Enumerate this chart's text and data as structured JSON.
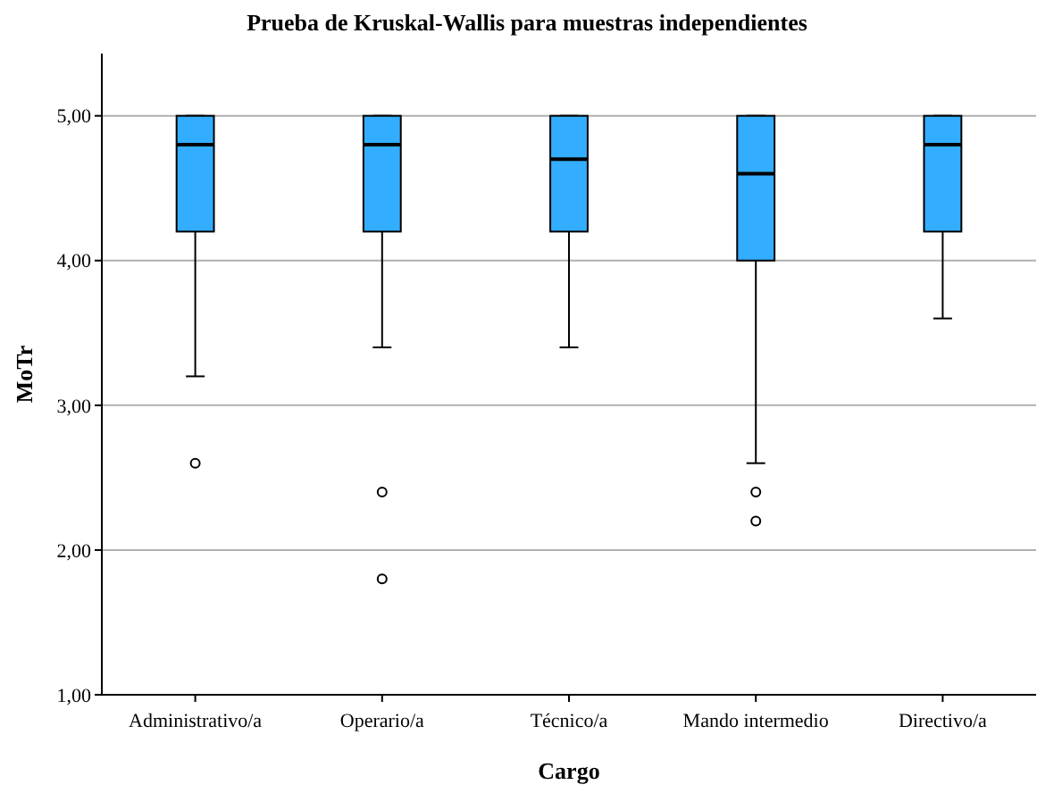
{
  "chart_data": {
    "type": "box",
    "title": "Prueba de Kruskal-Wallis para muestras independientes",
    "xlabel": "Cargo",
    "ylabel": "MoTr",
    "categories": [
      "Administrativo/a",
      "Operario/a",
      "Técnico/a",
      "Mando intermedio",
      "Directivo/a"
    ],
    "series": [
      {
        "color": "#33adff",
        "boxes": [
          {
            "low": 3.2,
            "q1": 4.2,
            "median": 4.8,
            "q3": 5,
            "high": 5,
            "outliers": [
              2.6
            ]
          },
          {
            "low": 3.4,
            "q1": 4.2,
            "median": 4.8,
            "q3": 5,
            "high": 5,
            "outliers": [
              2.4,
              1.8
            ]
          },
          {
            "low": 3.4,
            "q1": 4.2,
            "median": 4.7,
            "q3": 5,
            "high": 5
          },
          {
            "low": 2.6,
            "q1": 4.0,
            "median": 4.6,
            "q3": 5,
            "high": 5,
            "outliers": [
              2.4,
              2.2
            ]
          },
          {
            "low": 3.6,
            "q1": 4.2,
            "median": 4.8,
            "q3": 5,
            "high": 5
          }
        ]
      }
    ],
    "ylim": [
      1,
      5.43
    ],
    "yticks": [
      {
        "value": 1,
        "label": "1,00"
      },
      {
        "value": 2,
        "label": "2,00"
      },
      {
        "value": 3,
        "label": "3,00"
      },
      {
        "value": 4,
        "label": "4,00"
      },
      {
        "value": 5,
        "label": "5,00"
      }
    ],
    "grid": "y"
  }
}
